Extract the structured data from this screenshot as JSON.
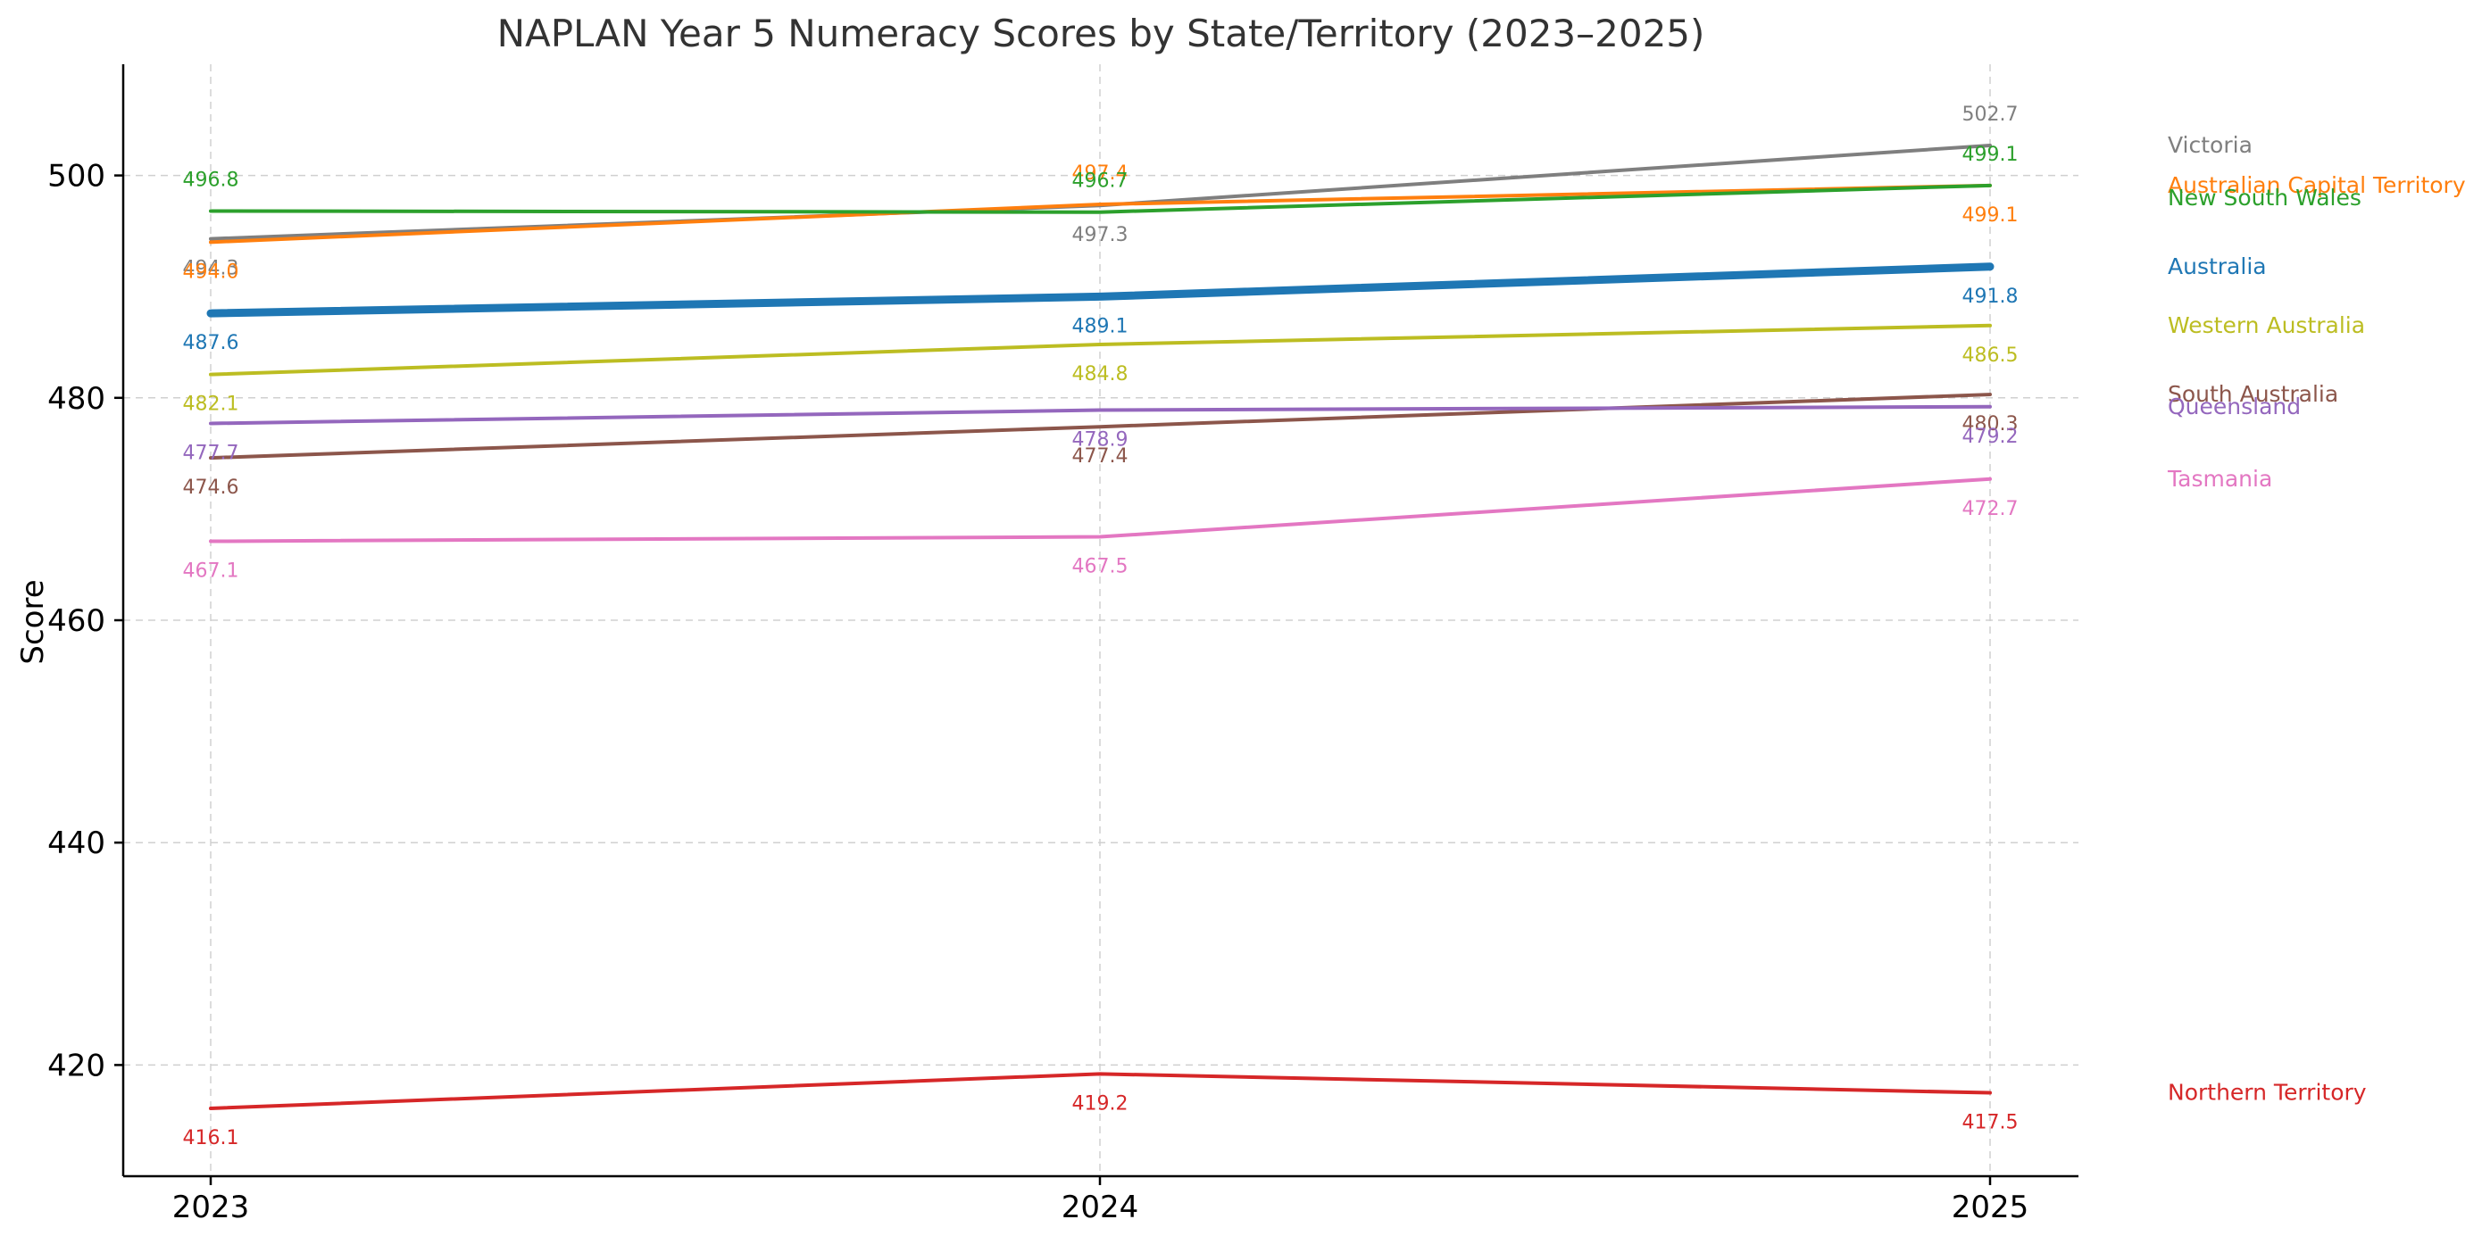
{
  "chart_data": {
    "type": "line",
    "title": "NAPLAN Year 5 Numeracy Scores by State/Territory (2023–2025)",
    "xlabel": "",
    "ylabel": "Score",
    "x": [
      "2023",
      "2024",
      "2025"
    ],
    "ylim": [
      410,
      510
    ],
    "yticks": [
      420,
      440,
      460,
      480,
      500
    ],
    "grid": true,
    "legend_placement": "right (labels at line ends)",
    "series": [
      {
        "name": "Victoria",
        "values": [
          494.3,
          497.3,
          502.7
        ],
        "color": "#7f7f7f",
        "emphasis": false
      },
      {
        "name": "Australian Capital Territory",
        "values": [
          494.0,
          497.4,
          499.1
        ],
        "color": "#ff7f0e",
        "emphasis": false
      },
      {
        "name": "New South Wales",
        "values": [
          496.8,
          496.7,
          499.1
        ],
        "color": "#2ca02c",
        "emphasis": false
      },
      {
        "name": "Australia",
        "values": [
          487.6,
          489.1,
          491.8
        ],
        "color": "#1f77b4",
        "emphasis": true
      },
      {
        "name": "Western Australia",
        "values": [
          482.1,
          484.8,
          486.5
        ],
        "color": "#bcbd22",
        "emphasis": false
      },
      {
        "name": "South Australia",
        "values": [
          474.6,
          477.4,
          480.3
        ],
        "color": "#8c564b",
        "emphasis": false
      },
      {
        "name": "Queensland",
        "values": [
          477.7,
          478.9,
          479.2
        ],
        "color": "#9467bd",
        "emphasis": false
      },
      {
        "name": "Tasmania",
        "values": [
          467.1,
          467.5,
          472.7
        ],
        "color": "#e377c2",
        "emphasis": false
      },
      {
        "name": "Northern Territory",
        "values": [
          416.1,
          419.2,
          417.5
        ],
        "color": "#d62728",
        "emphasis": false
      }
    ]
  }
}
